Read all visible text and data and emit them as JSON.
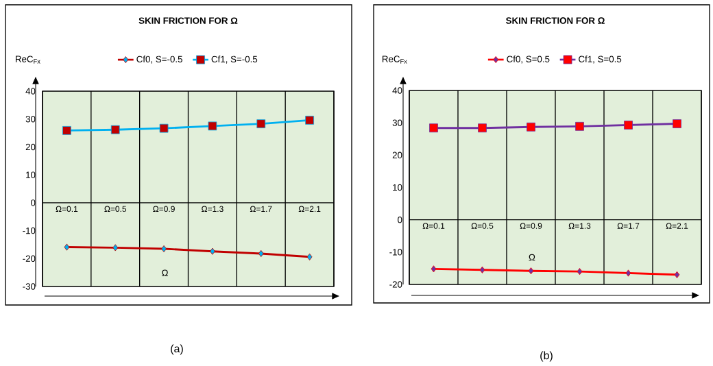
{
  "chart_data": [
    {
      "type": "line",
      "title": "SKIN FRICTION FOR Ω",
      "ylabel": "ReC$_{Fx}$",
      "xlabel": "Ω",
      "categories": [
        "Ω=0.1",
        "Ω=0.5",
        "Ω=0.9",
        "Ω=1.3",
        "Ω=1.7",
        "Ω=2.1"
      ],
      "series": [
        {
          "name": "Cf0, S=-0.5",
          "color": "#c00000",
          "marker": "diamond",
          "values": [
            -15.9,
            -16.1,
            -16.5,
            -17.4,
            -18.2,
            -19.4
          ]
        },
        {
          "name": "Cf1, S=-0.5",
          "color": "#00b0f0",
          "marker": "square",
          "values": [
            25.9,
            26.2,
            26.7,
            27.5,
            28.3,
            29.6
          ]
        }
      ],
      "ylim": [
        -30,
        40
      ],
      "yticks": [
        -30,
        -20,
        -10,
        0,
        10,
        20,
        30,
        40
      ],
      "grid": "x",
      "legend": "top",
      "annotations": [
        "(a)"
      ]
    },
    {
      "type": "line",
      "title": "SKIN FRICTION FOR Ω",
      "ylabel": "ReC$_{Fx}$",
      "xlabel": "Ω",
      "categories": [
        "Ω=0.1",
        "Ω=0.5",
        "Ω=0.9",
        "Ω=1.3",
        "Ω=1.7",
        "Ω=2.1"
      ],
      "series": [
        {
          "name": "Cf0, S=0.5",
          "color": "#ff0000",
          "marker": "diamond",
          "values": [
            -15.2,
            -15.5,
            -15.8,
            -16.0,
            -16.5,
            -17.0
          ]
        },
        {
          "name": "Cf1, S=0.5",
          "color": "#7030a0",
          "marker": "square",
          "values": [
            28.4,
            28.4,
            28.7,
            28.9,
            29.3,
            29.7
          ]
        }
      ],
      "ylim": [
        -20,
        40
      ],
      "yticks": [
        -20,
        -10,
        0,
        10,
        20,
        30,
        40
      ],
      "grid": "x",
      "legend": "top",
      "annotations": [
        "(b)"
      ]
    }
  ]
}
